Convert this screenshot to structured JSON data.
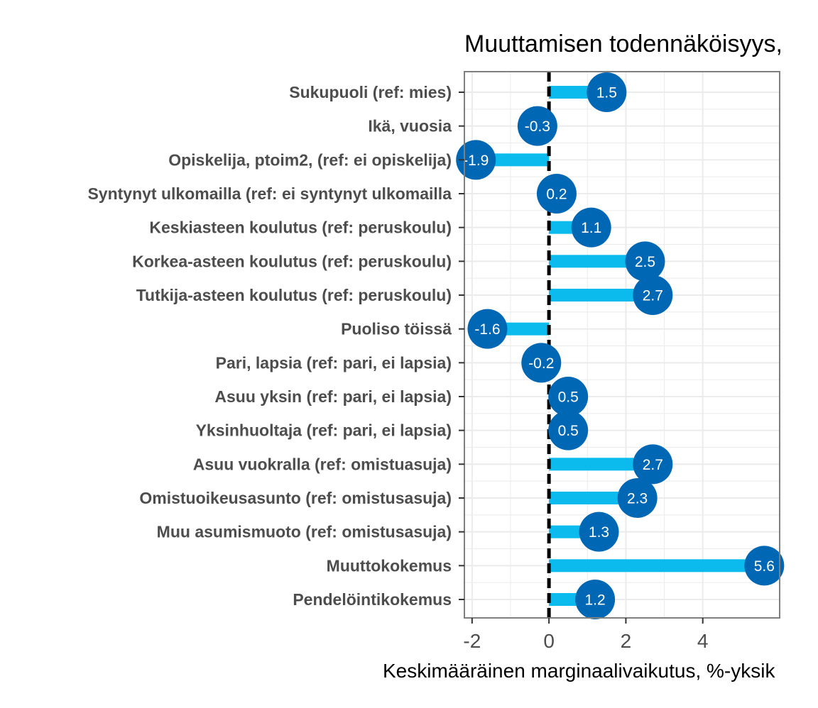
{
  "chart_data": {
    "type": "bar",
    "title": "Muuttamisen todennäköisyys,",
    "xlabel": "Keskimääräinen marginaalivaikutus, %-yksik",
    "ylabel": "",
    "xlim": [
      -2.2,
      6.0
    ],
    "xticks": [
      -2,
      0,
      2,
      4
    ],
    "grid": true,
    "legend": "none",
    "reference_line": 0,
    "categories": [
      "Sukupuoli (ref: mies)",
      "Ikä, vuosia",
      "Opiskelija, ptoim2, (ref: ei opiskelija)",
      "Syntynyt ulkomailla (ref: ei syntynyt ulkomailla",
      "Keskiasteen koulutus (ref: peruskoulu)",
      "Korkea-asteen koulutus (ref: peruskoulu)",
      "Tutkija-asteen koulutus (ref: peruskoulu)",
      "Puoliso töissä",
      "Pari, lapsia (ref: pari, ei lapsia)",
      "Asuu yksin (ref: pari, ei lapsia)",
      "Yksinhuoltaja (ref: pari, ei lapsia)",
      "Asuu vuokralla (ref: omistuasuja)",
      "Omistuoikeusasunto (ref: omistusasuja)",
      "Muu asumismuoto (ref: omistusasuja)",
      "Muuttokokemus",
      "Pendelöintikokemus"
    ],
    "values": [
      1.5,
      -0.3,
      -1.9,
      0.2,
      1.1,
      2.5,
      2.7,
      -1.6,
      -0.2,
      0.5,
      0.5,
      2.7,
      2.3,
      1.3,
      5.6,
      1.2
    ],
    "value_labels": [
      "1.5",
      "-0.3",
      "-1.9",
      "0.2",
      "1.1",
      "2.5",
      "2.7",
      "-1.6",
      "-0.2",
      "0.5",
      "0.5",
      "2.7",
      "2.3",
      "1.3",
      "5.6",
      "1.2"
    ],
    "colors": {
      "bar": "#0bbbee",
      "point": "#0067b4",
      "label": "#ffffff",
      "grid": "#ebebeb",
      "panel_border": "#7f7f7f",
      "zero_line": "#000000"
    }
  }
}
